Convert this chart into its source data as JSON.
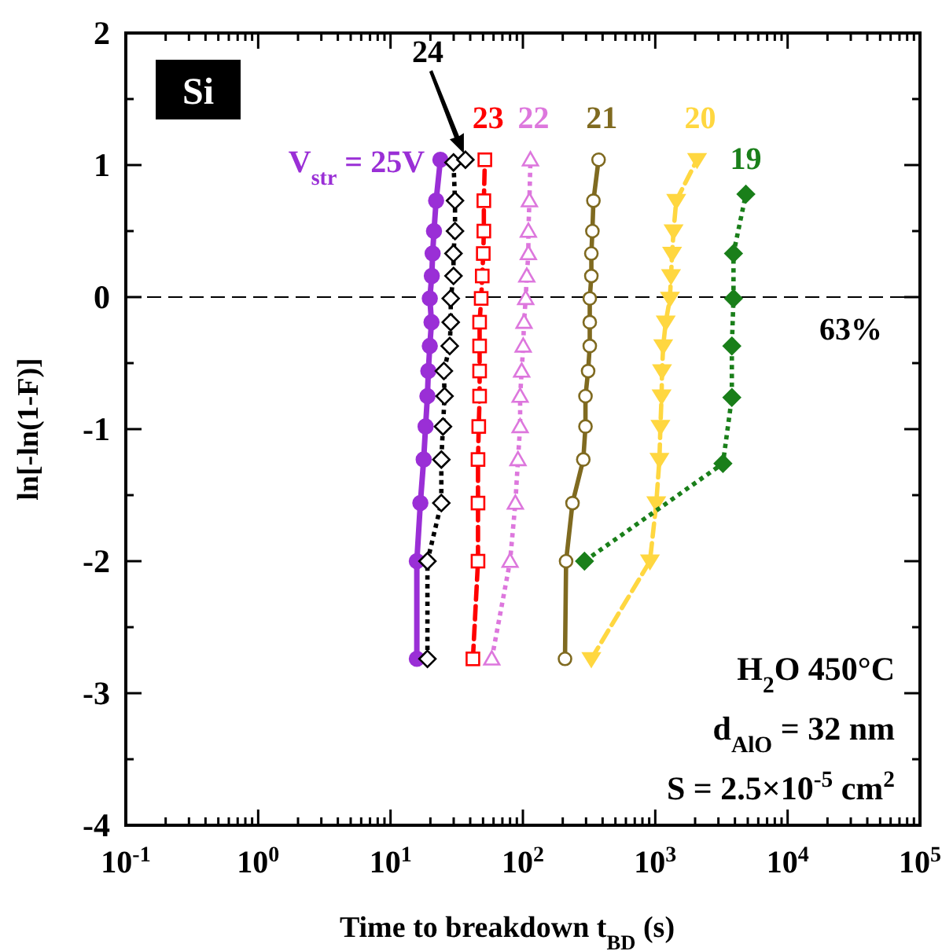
{
  "chart_data": {
    "type": "line",
    "xlabel": "Time to breakdown  t$_{BD}$ (s)",
    "ylabel": "ln[-ln(1-F)]",
    "log": "x",
    "xlim": [
      0.1,
      100000
    ],
    "ylim": [
      -4,
      2
    ],
    "xticks": [
      {
        "value": 0.1,
        "label": "10$^{-1}$"
      },
      {
        "value": 0.2,
        "label": null
      },
      {
        "value": 0.3,
        "label": null
      },
      {
        "value": 0.4,
        "label": null
      },
      {
        "value": 0.5,
        "label": null
      },
      {
        "value": 0.6,
        "label": null
      },
      {
        "value": 0.7,
        "label": null
      },
      {
        "value": 0.8,
        "label": null
      },
      {
        "value": 0.9,
        "label": null
      },
      {
        "value": 1,
        "label": "10$^{0}$"
      },
      {
        "value": 2,
        "label": null
      },
      {
        "value": 3,
        "label": null
      },
      {
        "value": 4,
        "label": null
      },
      {
        "value": 5,
        "label": null
      },
      {
        "value": 6,
        "label": null
      },
      {
        "value": 7,
        "label": null
      },
      {
        "value": 8,
        "label": null
      },
      {
        "value": 9,
        "label": null
      },
      {
        "value": 10,
        "label": "10$^{1}$"
      },
      {
        "value": 20,
        "label": null
      },
      {
        "value": 30,
        "label": null
      },
      {
        "value": 40,
        "label": null
      },
      {
        "value": 50,
        "label": null
      },
      {
        "value": 60,
        "label": null
      },
      {
        "value": 70,
        "label": null
      },
      {
        "value": 80,
        "label": null
      },
      {
        "value": 90,
        "label": null
      },
      {
        "value": 100,
        "label": "10$^{2}$"
      },
      {
        "value": 200,
        "label": null
      },
      {
        "value": 300,
        "label": null
      },
      {
        "value": 400,
        "label": null
      },
      {
        "value": 500,
        "label": null
      },
      {
        "value": 600,
        "label": null
      },
      {
        "value": 700,
        "label": null
      },
      {
        "value": 800,
        "label": null
      },
      {
        "value": 900,
        "label": null
      },
      {
        "value": 1000,
        "label": "10$^{3}$"
      },
      {
        "value": 2000,
        "label": null
      },
      {
        "value": 3000,
        "label": null
      },
      {
        "value": 4000,
        "label": null
      },
      {
        "value": 5000,
        "label": null
      },
      {
        "value": 6000,
        "label": null
      },
      {
        "value": 7000,
        "label": null
      },
      {
        "value": 8000,
        "label": null
      },
      {
        "value": 9000,
        "label": null
      },
      {
        "value": 10000,
        "label": "10$^{4}$"
      },
      {
        "value": 20000,
        "label": null
      },
      {
        "value": 30000,
        "label": null
      },
      {
        "value": 40000,
        "label": null
      },
      {
        "value": 50000,
        "label": null
      },
      {
        "value": 60000,
        "label": null
      },
      {
        "value": 70000,
        "label": null
      },
      {
        "value": 80000,
        "label": null
      },
      {
        "value": 90000,
        "label": null
      },
      {
        "value": 100000,
        "label": "10$^{5}$"
      }
    ],
    "yticks": [
      -4,
      {
        "value": -3.5,
        "label": null
      },
      -3,
      {
        "value": -2.5,
        "label": null
      },
      -2,
      {
        "value": -1.5,
        "label": null
      },
      -1,
      {
        "value": -0.5,
        "label": null
      },
      0,
      {
        "value": 0.5,
        "label": null
      },
      1,
      {
        "value": 1.5,
        "label": null
      },
      2
    ],
    "grid": false,
    "ref_lines": [
      {
        "axis": "y",
        "value": 0,
        "color": "#000000",
        "line_style": "dashed"
      }
    ],
    "annotations": [
      "Si",
      "H$_{2}$O 450°C",
      "d$_{AlO}$ = 32 nm",
      "S = 2.5×10$^{-5}$ cm$^{2}$",
      "63%"
    ],
    "series": [
      {
        "name": "V$_{str}$ = 25V",
        "color": "#9a2fd6",
        "marker": "circle",
        "line_style": "solid",
        "x": [
          15.8,
          15.8,
          16.8,
          17.8,
          18.4,
          19.0,
          19.3,
          19.8,
          20.4,
          19.8,
          20.5,
          20.8,
          21.3,
          22.1,
          23.8
        ],
        "values": [
          -2.74,
          -2.0,
          -1.56,
          -1.23,
          -0.98,
          -0.75,
          -0.56,
          -0.37,
          -0.19,
          -0.01,
          0.16,
          0.33,
          0.5,
          0.73,
          1.04
        ]
      },
      {
        "name": "24",
        "color": "#000000",
        "marker": "diamond",
        "line_style": "dotted",
        "x": [
          19.0,
          19.0,
          24.2,
          24.2,
          24.9,
          25.6,
          25.3,
          28.0,
          28.5,
          28.5,
          29.9,
          29.9,
          30.7,
          30.7,
          29.9,
          36.8
        ],
        "values": [
          -2.74,
          -2.0,
          -1.56,
          -1.23,
          -0.98,
          -0.75,
          -0.56,
          -0.37,
          -0.19,
          -0.01,
          0.16,
          0.33,
          0.5,
          0.73,
          1.02,
          1.04
        ]
      },
      {
        "name": "23",
        "color": "#ff0000",
        "marker": "square",
        "line_style": "dashed",
        "x": [
          41.9,
          45.8,
          45.8,
          45.8,
          46.4,
          47.1,
          47.1,
          47.1,
          47.1,
          48.4,
          49.3,
          50.2,
          50.7,
          50.7,
          51.6
        ],
        "values": [
          -2.74,
          -2.0,
          -1.56,
          -1.23,
          -0.98,
          -0.75,
          -0.56,
          -0.37,
          -0.19,
          -0.01,
          0.16,
          0.33,
          0.5,
          0.73,
          1.04
        ]
      },
      {
        "name": "22",
        "color": "#dd77dd",
        "marker": "triangle",
        "line_style": "dotted",
        "x": [
          58.2,
          80.0,
          87.7,
          91.8,
          95.3,
          95.3,
          97.9,
          100.5,
          102,
          105,
          107,
          110,
          110,
          112,
          114
        ],
        "values": [
          -2.74,
          -2.0,
          -1.56,
          -1.23,
          -0.98,
          -0.75,
          -0.56,
          -0.37,
          -0.19,
          -0.01,
          0.16,
          0.33,
          0.5,
          0.73,
          1.04
        ]
      },
      {
        "name": "21",
        "color": "#7f6a20",
        "marker": "circle",
        "line_style": "solid",
        "x": [
          208,
          212,
          237,
          286,
          297,
          297,
          311,
          320,
          320,
          320,
          329,
          329,
          335,
          341,
          373
        ],
        "values": [
          -2.74,
          -2.0,
          -1.56,
          -1.23,
          -0.98,
          -0.75,
          -0.56,
          -0.37,
          -0.19,
          -0.01,
          0.16,
          0.33,
          0.5,
          0.73,
          1.04
        ]
      },
      {
        "name": "20",
        "color": "#ffd740",
        "marker": "triangle-down",
        "line_style": "dashed",
        "x": [
          329,
          912,
          1018,
          1075,
          1094,
          1116,
          1125,
          1148,
          1200,
          1291,
          1315,
          1340,
          1375,
          1440,
          2070
        ],
        "values": [
          -2.74,
          -2.0,
          -1.56,
          -1.23,
          -0.98,
          -0.75,
          -0.56,
          -0.37,
          -0.19,
          -0.01,
          0.16,
          0.33,
          0.5,
          0.73,
          1.04
        ]
      },
      {
        "name": "19",
        "color": "#1a7f1a",
        "marker": "diamond",
        "line_style": "dotted",
        "x": [
          292,
          3245,
          3790,
          3790,
          3900,
          3900,
          4840
        ],
        "values": [
          -2.0,
          -1.26,
          -0.76,
          -0.37,
          -0.01,
          0.33,
          0.78
        ]
      }
    ]
  }
}
